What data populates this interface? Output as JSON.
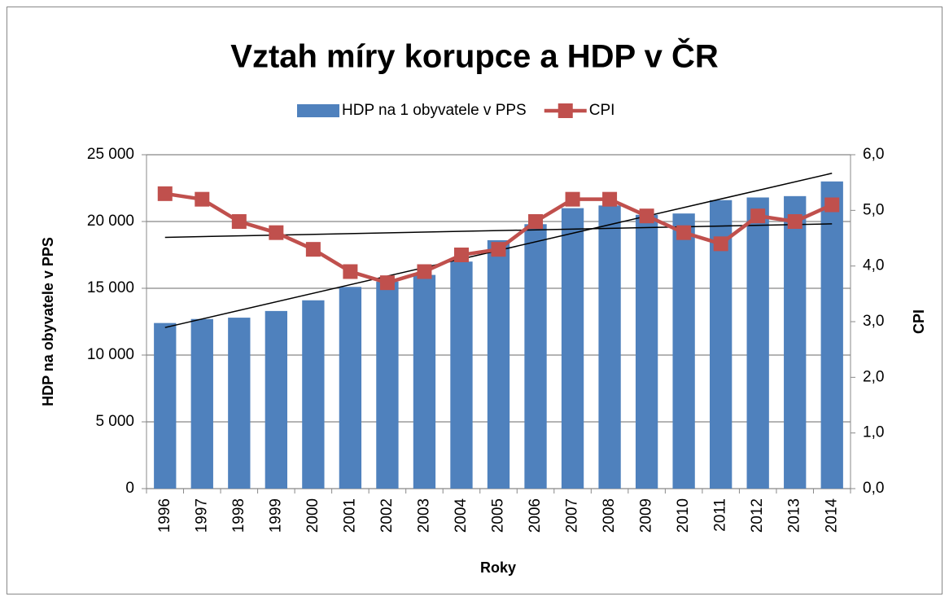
{
  "chart_data": {
    "type": "bar_line",
    "title": "Vztah míry korupce a HDP v ČR",
    "x_label": "Roky",
    "y_label": "HDP na obyvatele v PPS",
    "y2_label": "CPI",
    "categories": [
      "1996",
      "1997",
      "1998",
      "1999",
      "2000",
      "2001",
      "2002",
      "2003",
      "2004",
      "2005",
      "2006",
      "2007",
      "2008",
      "2009",
      "2010",
      "2011",
      "2012",
      "2013",
      "2014"
    ],
    "series": [
      {
        "name": "HDP na 1 obyvatele v PPS",
        "type": "bar",
        "color": "#4f81bd",
        "values": [
          12400,
          12700,
          12800,
          13300,
          14100,
          15100,
          15500,
          16000,
          17000,
          18600,
          19800,
          21000,
          21200,
          20500,
          20600,
          21600,
          21800,
          21900,
          23000
        ]
      },
      {
        "name": "CPI",
        "type": "line",
        "axis": "y2",
        "color": "#c0504d",
        "values": [
          5.3,
          5.2,
          4.8,
          4.6,
          4.3,
          3.9,
          3.7,
          3.9,
          4.2,
          4.3,
          4.8,
          5.2,
          5.2,
          4.9,
          4.6,
          4.4,
          4.9,
          4.8,
          5.1
        ]
      }
    ],
    "ylim": [
      0,
      25000
    ],
    "yticks": [
      0,
      {
        "value": 5000,
        "label": "5 000"
      },
      {
        "value": 10000,
        "label": "10 000"
      },
      {
        "value": 15000,
        "label": "15 000"
      },
      {
        "value": 20000,
        "label": "20 000"
      },
      {
        "value": 25000,
        "label": "25 000"
      }
    ],
    "y2lim": [
      0,
      6
    ],
    "y2ticks": [
      {
        "value": 0,
        "label": "0,0"
      },
      {
        "value": 1,
        "label": "1,0"
      },
      {
        "value": 2,
        "label": "2,0"
      },
      {
        "value": 3,
        "label": "3,0"
      },
      {
        "value": 4,
        "label": "4,0"
      },
      {
        "value": 5,
        "label": "5,0"
      },
      {
        "value": 6,
        "label": "6,0"
      }
    ],
    "grid": true,
    "trendlines": true,
    "legend": "top"
  }
}
